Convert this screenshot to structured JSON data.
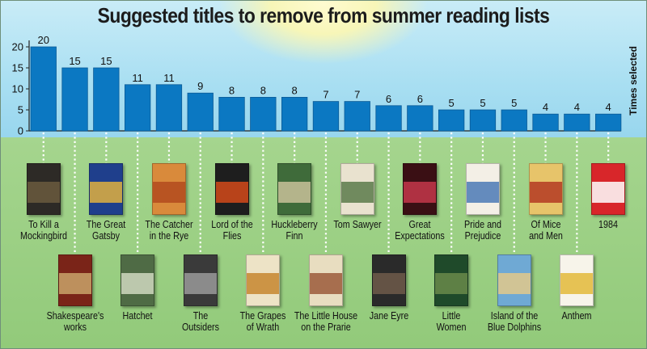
{
  "title": "Suggested titles to remove from summer reading lists",
  "chart_data": {
    "type": "bar",
    "title": "Suggested titles to remove from summer reading lists",
    "ylabel": "Times selected",
    "xlabel": "",
    "ylim": [
      0,
      20
    ],
    "yticks": [
      0,
      5,
      10,
      15,
      20
    ],
    "grid": false,
    "bar_color": "#0b78c2",
    "categories": [
      "To Kill a Mockingbird",
      "Shakespeare's works",
      "The Great Gatsby",
      "Hatchet",
      "The Catcher in the Rye",
      "The Outsiders",
      "Lord of the Flies",
      "The Grapes of Wrath",
      "Huckleberry Finn",
      "The Little House on the Prarie",
      "Tom Sawyer",
      "Jane Eyre",
      "Great Expectations",
      "Little Women",
      "Pride and Prejudice",
      "Island of the Blue Dolphins",
      "Of Mice and Men",
      "Anthem",
      "1984"
    ],
    "values": [
      20,
      15,
      15,
      11,
      11,
      9,
      8,
      8,
      8,
      7,
      7,
      6,
      6,
      5,
      5,
      5,
      4,
      4,
      4
    ]
  },
  "books": [
    {
      "lines": [
        "To Kill a",
        "Mockingbird"
      ],
      "row": "top",
      "cover": "#2d2a26",
      "band": "#6b5a3e"
    },
    {
      "lines": [
        "Shakespeare's",
        "works"
      ],
      "row": "bottom",
      "cover": "#7a2418",
      "band": "#c9a36a"
    },
    {
      "lines": [
        "The Great",
        "Gatsby"
      ],
      "row": "top",
      "cover": "#1f3f8c",
      "band": "#e0b040"
    },
    {
      "lines": [
        "Hatchet"
      ],
      "row": "bottom",
      "cover": "#4f6b45",
      "band": "#cfd8c0"
    },
    {
      "lines": [
        "The Catcher",
        "in the Rye"
      ],
      "row": "top",
      "cover": "#d98a3b",
      "band": "#b24a1e"
    },
    {
      "lines": [
        "The",
        "Outsiders"
      ],
      "row": "bottom",
      "cover": "#3a3a3a",
      "band": "#9a9a9a"
    },
    {
      "lines": [
        "Lord of the",
        "Flies"
      ],
      "row": "top",
      "cover": "#1e1e1e",
      "band": "#d44a1a"
    },
    {
      "lines": [
        "The Grapes",
        "of Wrath"
      ],
      "row": "bottom",
      "cover": "#ede3c6",
      "band": "#c6862e"
    },
    {
      "lines": [
        "Huckleberry",
        "Finn"
      ],
      "row": "top",
      "cover": "#3f6b3a",
      "band": "#c9c19a"
    },
    {
      "lines": [
        "The Little House",
        "on the Prarie"
      ],
      "row": "bottom",
      "cover": "#e8ddc0",
      "band": "#9b5a3a"
    },
    {
      "lines": [
        "Tom Sawyer"
      ],
      "row": "top",
      "cover": "#e9e2cf",
      "band": "#5a7a4a"
    },
    {
      "lines": [
        "Jane Eyre"
      ],
      "row": "bottom",
      "cover": "#2a2a2a",
      "band": "#6e5a4a"
    },
    {
      "lines": [
        "Great",
        "Expectations"
      ],
      "row": "top",
      "cover": "#3a0f14",
      "band": "#c4374a"
    },
    {
      "lines": [
        "Little",
        "Women"
      ],
      "row": "bottom",
      "cover": "#1f4a2a",
      "band": "#6a8a4a"
    },
    {
      "lines": [
        "Pride and",
        "Prejudice"
      ],
      "row": "top",
      "cover": "#f3efe6",
      "band": "#4a79b5"
    },
    {
      "lines": [
        "Island of the",
        "Blue Dolphins"
      ],
      "row": "bottom",
      "cover": "#6fa9d4",
      "band": "#e3c98a"
    },
    {
      "lines": [
        "Of Mice",
        "and Men"
      ],
      "row": "top",
      "cover": "#e7c46a",
      "band": "#b33a22"
    },
    {
      "lines": [
        "Anthem"
      ],
      "row": "bottom",
      "cover": "#f7f4ea",
      "band": "#e3b83a"
    },
    {
      "lines": [
        "1984"
      ],
      "row": "top",
      "cover": "#d8262a",
      "band": "#ffffff"
    }
  ]
}
